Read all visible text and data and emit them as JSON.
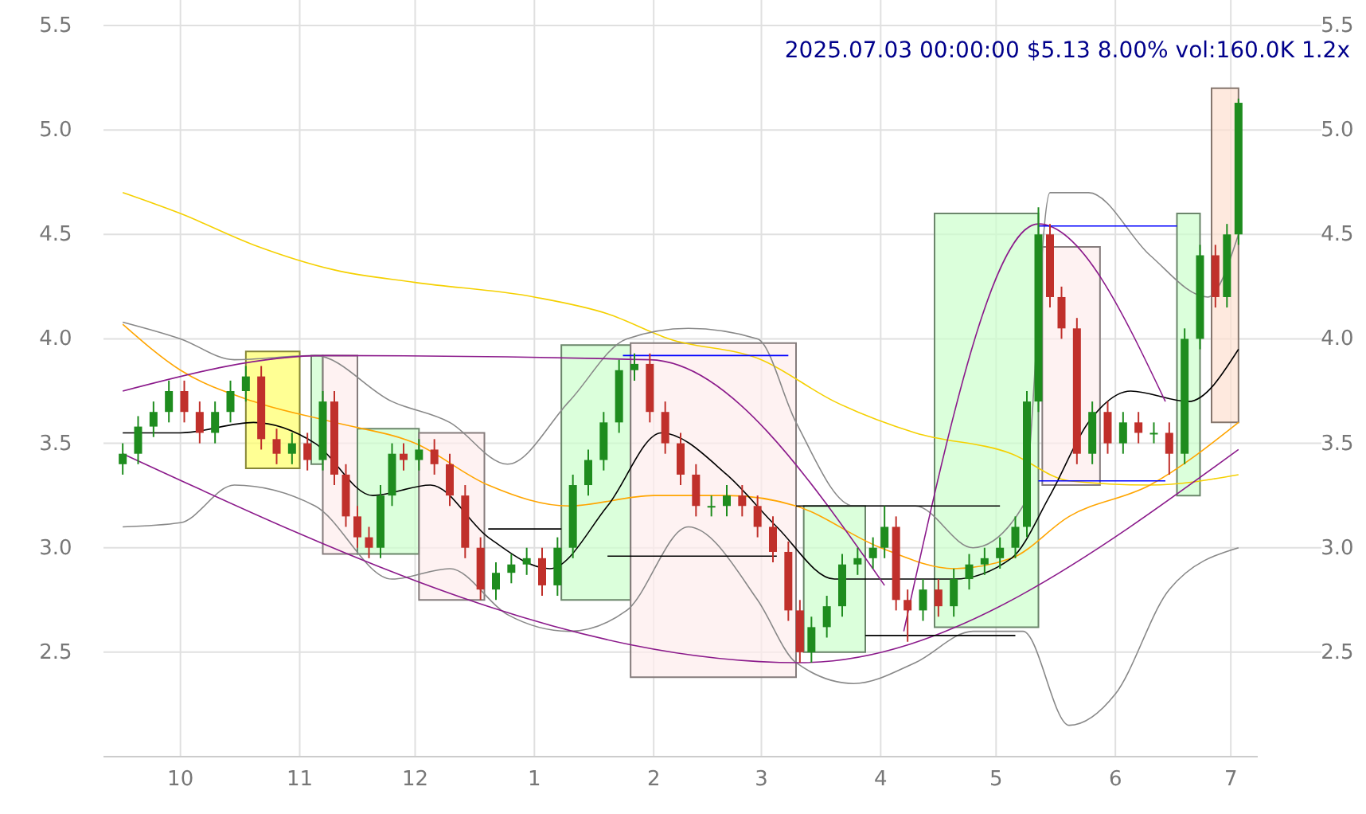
{
  "chart_data": {
    "type": "candlestick",
    "title": "2025.07.03 00:00:00 $5.13 8.00% vol:160.0K 1.2x",
    "xlim": [
      "2024-09-11",
      "2025-07-08"
    ],
    "xticks": [
      {
        "value": "2024-10-01",
        "label": "10"
      },
      {
        "value": "2024-11-01",
        "label": "11"
      },
      {
        "value": "2024-12-01",
        "label": "12"
      },
      {
        "value": "2025-01-01",
        "label": "1"
      },
      {
        "value": "2025-02-01",
        "label": "2"
      },
      {
        "value": "2025-03-01",
        "label": "3"
      },
      {
        "value": "2025-04-01",
        "label": "4"
      },
      {
        "value": "2025-05-01",
        "label": "5"
      },
      {
        "value": "2025-06-01",
        "label": "6"
      },
      {
        "value": "2025-07-01",
        "label": "7"
      }
    ],
    "ylim": [
      2.0,
      5.5
    ],
    "yticks": [
      2.5,
      {
        "value": 3,
        "label": "3.0"
      },
      3.5,
      {
        "value": 4,
        "label": "4.0"
      },
      4.5,
      {
        "value": 5,
        "label": "5.0"
      },
      5.5
    ],
    "y2lim": [
      2.0,
      5.5
    ],
    "y2ticks": [
      2.5,
      {
        "value": 3,
        "label": "3.0"
      },
      3.5,
      {
        "value": 4,
        "label": "4.0"
      },
      4.5,
      {
        "value": 5,
        "label": "5.0"
      },
      5.5
    ],
    "grid": true,
    "colors": [
      "#1e8c1e",
      "#1e8c1e",
      "#1e8c1e",
      "#1e8c1e",
      "#c0302b",
      "#c0302b",
      "#1e8c1e",
      "#1e8c1e",
      "#1e8c1e",
      "#c0302b",
      "#c0302b",
      "#1e8c1e",
      "#c0302b",
      "#1e8c1e",
      "#c0302b",
      "#c0302b",
      "#c0302b",
      "#c0302b",
      "#1e8c1e",
      "#1e8c1e",
      "#c0302b",
      "#1e8c1e",
      "#c0302b",
      "#c0302b",
      "#c0302b",
      "#c0302b",
      "#1e8c1e",
      "#1e8c1e",
      "#1e8c1e",
      "#c0302b",
      "#1e8c1e",
      "#1e8c1e",
      "#1e8c1e",
      "#1e8c1e",
      "#1e8c1e",
      "#1e8c1e",
      "#c0302b",
      "#c0302b",
      "#c0302b",
      "#c0302b",
      "#1e8c1e",
      "#1e8c1e",
      "#c0302b",
      "#c0302b",
      "#c0302b",
      "#c0302b",
      "#c0302b",
      "#1e8c1e",
      "#1e8c1e",
      "#1e8c1e",
      "#1e8c1e",
      "#1e8c1e",
      "#1e8c1e",
      "#c0302b",
      "#c0302b",
      "#1e8c1e",
      "#c0302b",
      "#1e8c1e",
      "#1e8c1e",
      "#1e8c1e",
      "#1e8c1e",
      "#1e8c1e",
      "#1e8c1e",
      "#1e8c1e",
      "#c0302b",
      "#c0302b",
      "#c0302b",
      "#1e8c1e",
      "#c0302b",
      "#1e8c1e",
      "#c0302b",
      "#1e8c1e",
      "#c0302b",
      "#1e8c1e",
      "#1e8c1e",
      "#c0302b",
      "#1e8c1e",
      "#1e8c1e"
    ],
    "x": [
      "2024-09-16",
      "2024-09-20",
      "2024-09-24",
      "2024-09-28",
      "2024-10-02",
      "2024-10-06",
      "2024-10-10",
      "2024-10-14",
      "2024-10-18",
      "2024-10-22",
      "2024-10-26",
      "2024-10-30",
      "2024-11-03",
      "2024-11-07",
      "2024-11-10",
      "2024-11-13",
      "2024-11-16",
      "2024-11-19",
      "2024-11-22",
      "2024-11-25",
      "2024-11-28",
      "2024-12-02",
      "2024-12-06",
      "2024-12-10",
      "2024-12-14",
      "2024-12-18",
      "2024-12-22",
      "2024-12-26",
      "2024-12-30",
      "2025-01-03",
      "2025-01-07",
      "2025-01-11",
      "2025-01-15",
      "2025-01-19",
      "2025-01-23",
      "2025-01-27",
      "2025-01-31",
      "2025-02-04",
      "2025-02-08",
      "2025-02-12",
      "2025-02-16",
      "2025-02-20",
      "2025-02-24",
      "2025-02-28",
      "2025-03-04",
      "2025-03-08",
      "2025-03-11",
      "2025-03-14",
      "2025-03-18",
      "2025-03-22",
      "2025-03-26",
      "2025-03-30",
      "2025-04-02",
      "2025-04-05",
      "2025-04-08",
      "2025-04-12",
      "2025-04-16",
      "2025-04-20",
      "2025-04-24",
      "2025-04-28",
      "2025-05-02",
      "2025-05-06",
      "2025-05-09",
      "2025-05-12",
      "2025-05-15",
      "2025-05-18",
      "2025-05-22",
      "2025-05-26",
      "2025-05-30",
      "2025-06-03",
      "2025-06-07",
      "2025-06-11",
      "2025-06-15",
      "2025-06-19",
      "2025-06-23",
      "2025-06-27",
      "2025-06-30",
      "2025-07-03"
    ],
    "ohlc": [
      [
        3.4,
        3.5,
        3.35,
        3.45
      ],
      [
        3.45,
        3.63,
        3.4,
        3.58
      ],
      [
        3.58,
        3.7,
        3.53,
        3.65
      ],
      [
        3.65,
        3.8,
        3.6,
        3.75
      ],
      [
        3.75,
        3.8,
        3.6,
        3.65
      ],
      [
        3.65,
        3.7,
        3.5,
        3.55
      ],
      [
        3.55,
        3.7,
        3.5,
        3.65
      ],
      [
        3.65,
        3.8,
        3.6,
        3.75
      ],
      [
        3.75,
        3.87,
        3.7,
        3.82
      ],
      [
        3.82,
        3.87,
        3.47,
        3.52
      ],
      [
        3.52,
        3.57,
        3.4,
        3.45
      ],
      [
        3.45,
        3.55,
        3.4,
        3.5
      ],
      [
        3.5,
        3.55,
        3.37,
        3.42
      ],
      [
        3.42,
        3.75,
        3.37,
        3.7
      ],
      [
        3.7,
        3.75,
        3.3,
        3.35
      ],
      [
        3.35,
        3.4,
        3.1,
        3.15
      ],
      [
        3.15,
        3.2,
        3.0,
        3.05
      ],
      [
        3.05,
        3.1,
        2.95,
        3.0
      ],
      [
        3.0,
        3.3,
        2.95,
        3.25
      ],
      [
        3.25,
        3.5,
        3.2,
        3.45
      ],
      [
        3.45,
        3.5,
        3.37,
        3.42
      ],
      [
        3.42,
        3.52,
        3.37,
        3.47
      ],
      [
        3.47,
        3.52,
        3.35,
        3.4
      ],
      [
        3.4,
        3.45,
        3.2,
        3.25
      ],
      [
        3.25,
        3.3,
        2.95,
        3.0
      ],
      [
        3.0,
        3.05,
        2.75,
        2.8
      ],
      [
        2.8,
        2.93,
        2.75,
        2.88
      ],
      [
        2.88,
        2.97,
        2.83,
        2.92
      ],
      [
        2.92,
        3.0,
        2.87,
        2.95
      ],
      [
        2.95,
        3.0,
        2.77,
        2.82
      ],
      [
        2.82,
        3.05,
        2.77,
        3.0
      ],
      [
        3.0,
        3.35,
        2.95,
        3.3
      ],
      [
        3.3,
        3.47,
        3.25,
        3.42
      ],
      [
        3.42,
        3.65,
        3.37,
        3.6
      ],
      [
        3.6,
        3.9,
        3.55,
        3.85
      ],
      [
        3.85,
        3.93,
        3.8,
        3.88
      ],
      [
        3.88,
        3.93,
        3.6,
        3.65
      ],
      [
        3.65,
        3.7,
        3.45,
        3.5
      ],
      [
        3.5,
        3.55,
        3.3,
        3.35
      ],
      [
        3.35,
        3.4,
        3.15,
        3.2
      ],
      [
        3.2,
        3.25,
        3.15,
        3.2
      ],
      [
        3.2,
        3.3,
        3.15,
        3.25
      ],
      [
        3.25,
        3.3,
        3.15,
        3.2
      ],
      [
        3.2,
        3.25,
        3.05,
        3.1
      ],
      [
        3.1,
        3.15,
        2.93,
        2.98
      ],
      [
        2.98,
        3.03,
        2.65,
        2.7
      ],
      [
        2.7,
        2.75,
        2.45,
        2.5
      ],
      [
        2.5,
        2.67,
        2.45,
        2.62
      ],
      [
        2.62,
        2.77,
        2.57,
        2.72
      ],
      [
        2.72,
        2.97,
        2.67,
        2.92
      ],
      [
        2.92,
        3.0,
        2.87,
        2.95
      ],
      [
        2.95,
        3.05,
        2.9,
        3.0
      ],
      [
        3.0,
        3.2,
        2.95,
        3.1
      ],
      [
        3.1,
        3.15,
        2.7,
        2.75
      ],
      [
        2.75,
        2.8,
        2.55,
        2.7
      ],
      [
        2.7,
        2.85,
        2.65,
        2.8
      ],
      [
        2.8,
        2.85,
        2.67,
        2.72
      ],
      [
        2.72,
        2.9,
        2.67,
        2.85
      ],
      [
        2.85,
        2.97,
        2.8,
        2.92
      ],
      [
        2.92,
        3.0,
        2.87,
        2.95
      ],
      [
        2.95,
        3.05,
        2.9,
        3.0
      ],
      [
        3.0,
        3.15,
        2.95,
        3.1
      ],
      [
        3.1,
        3.75,
        3.05,
        3.7
      ],
      [
        3.7,
        4.63,
        3.65,
        4.5
      ],
      [
        4.5,
        4.55,
        4.15,
        4.2
      ],
      [
        4.2,
        4.25,
        4.0,
        4.05
      ],
      [
        4.05,
        4.1,
        3.4,
        3.45
      ],
      [
        3.45,
        3.7,
        3.4,
        3.65
      ],
      [
        3.65,
        3.7,
        3.45,
        3.5
      ],
      [
        3.5,
        3.65,
        3.45,
        3.6
      ],
      [
        3.6,
        3.65,
        3.5,
        3.55
      ],
      [
        3.55,
        3.6,
        3.5,
        3.55
      ],
      [
        3.55,
        3.6,
        3.35,
        3.45
      ],
      [
        3.45,
        4.05,
        3.4,
        4.0
      ],
      [
        4.0,
        4.45,
        3.95,
        4.4
      ],
      [
        4.4,
        4.45,
        4.15,
        4.2
      ],
      [
        4.2,
        4.55,
        4.15,
        4.5
      ],
      [
        4.5,
        5.15,
        4.45,
        5.13
      ]
    ],
    "series": [
      {
        "type": "line",
        "color": "#ffff66",
        "x": [
          "2024-10-18",
          "2024-11-01"
        ],
        "values": [
          null,
          null
        ],
        "upper": [
          3.94,
          3.94
        ],
        "lower": [
          3.38,
          3.38
        ]
      },
      {
        "type": "line",
        "color": "#ccffcc",
        "x": [
          "2024-11-04",
          "2024-11-07"
        ],
        "values": [
          null,
          null
        ],
        "upper": [
          3.92,
          3.92
        ],
        "lower": [
          3.4,
          3.4
        ]
      },
      {
        "type": "line",
        "color": "#fdecec",
        "x": [
          "2024-11-07",
          "2024-11-16"
        ],
        "values": [
          null,
          null
        ],
        "upper": [
          3.92,
          3.92
        ],
        "lower": [
          2.97,
          2.97
        ]
      },
      {
        "type": "line",
        "color": "#ccffcc",
        "x": [
          "2024-11-16",
          "2024-12-02"
        ],
        "values": [
          null,
          null
        ],
        "upper": [
          3.57,
          3.57
        ],
        "lower": [
          2.97,
          2.97
        ]
      },
      {
        "type": "line",
        "color": "#fdecec",
        "x": [
          "2024-12-02",
          "2024-12-19"
        ],
        "values": [
          null,
          null
        ],
        "upper": [
          3.55,
          3.55
        ],
        "lower": [
          2.75,
          2.75
        ]
      },
      {
        "type": "line",
        "color": "#ccffcc",
        "x": [
          "2025-01-08",
          "2025-01-26"
        ],
        "values": [
          null,
          null
        ],
        "upper": [
          3.97,
          3.97
        ],
        "lower": [
          2.75,
          2.75
        ]
      },
      {
        "type": "line",
        "color": "#fdecec",
        "x": [
          "2025-01-26",
          "2025-03-10"
        ],
        "values": [
          null,
          null
        ],
        "upper": [
          3.98,
          3.98
        ],
        "lower": [
          2.38,
          2.38
        ]
      },
      {
        "type": "line",
        "color": "#ccffcc",
        "x": [
          "2025-03-12",
          "2025-03-28"
        ],
        "values": [
          null,
          null
        ],
        "upper": [
          3.2,
          3.2
        ],
        "lower": [
          2.5,
          2.5
        ]
      },
      {
        "type": "line",
        "color": "#ccffcc",
        "x": [
          "2025-04-15",
          "2025-05-12"
        ],
        "values": [
          null,
          null
        ],
        "upper": [
          4.6,
          4.6
        ],
        "lower": [
          2.62,
          2.62
        ]
      },
      {
        "type": "line",
        "color": "#fdecec",
        "x": [
          "2025-05-13",
          "2025-05-28"
        ],
        "values": [
          null,
          null
        ],
        "upper": [
          4.44,
          4.44
        ],
        "lower": [
          3.3,
          3.3
        ]
      },
      {
        "type": "line",
        "color": "#ccffcc",
        "x": [
          "2025-06-17",
          "2025-06-23"
        ],
        "values": [
          null,
          null
        ],
        "upper": [
          4.6,
          4.6
        ],
        "lower": [
          3.25,
          3.25
        ]
      },
      {
        "type": "line",
        "color": "#fde0d0",
        "x": [
          "2025-06-26",
          "2025-07-03"
        ],
        "values": [
          null,
          null
        ],
        "upper": [
          5.2,
          5.2
        ],
        "lower": [
          3.6,
          3.6
        ]
      },
      {
        "type": "line",
        "color": "#f5d000",
        "x": [
          "2024-09-16",
          "2024-10-01",
          "2024-10-20",
          "2024-11-10",
          "2024-12-01",
          "2025-01-01",
          "2025-01-20",
          "2025-02-05",
          "2025-03-01",
          "2025-03-20",
          "2025-04-10",
          "2025-05-05",
          "2025-05-20",
          "2025-06-10",
          "2025-07-03"
        ],
        "values": [
          4.7,
          4.6,
          4.45,
          4.33,
          4.27,
          4.2,
          4.12,
          4.0,
          3.9,
          3.7,
          3.55,
          3.45,
          3.32,
          3.3,
          3.35
        ]
      },
      {
        "type": "line",
        "color": "#ffa500",
        "x": [
          "2024-09-16",
          "2024-10-01",
          "2024-10-20",
          "2024-11-10",
          "2024-12-01",
          "2024-12-20",
          "2025-01-10",
          "2025-02-01",
          "2025-02-20",
          "2025-03-10",
          "2025-04-01",
          "2025-04-20",
          "2025-05-05",
          "2025-05-20",
          "2025-06-10",
          "2025-07-03"
        ],
        "values": [
          4.07,
          3.85,
          3.7,
          3.6,
          3.5,
          3.3,
          3.2,
          3.25,
          3.25,
          3.2,
          3.0,
          2.9,
          2.95,
          3.15,
          3.3,
          3.6
        ]
      },
      {
        "type": "line",
        "color": "#000000",
        "x": [
          "2024-09-16",
          "2024-10-01",
          "2024-10-20",
          "2024-11-05",
          "2024-11-20",
          "2024-12-05",
          "2024-12-20",
          "2025-01-05",
          "2025-01-20",
          "2025-02-03",
          "2025-02-20",
          "2025-03-05",
          "2025-03-20",
          "2025-04-05",
          "2025-04-20",
          "2025-05-05",
          "2025-05-15",
          "2025-05-25",
          "2025-06-05",
          "2025-06-20",
          "2025-07-03"
        ],
        "values": [
          3.55,
          3.55,
          3.6,
          3.5,
          3.25,
          3.3,
          3.05,
          2.9,
          3.2,
          3.55,
          3.35,
          3.1,
          2.85,
          2.85,
          2.85,
          2.95,
          3.25,
          3.6,
          3.75,
          3.7,
          3.95
        ]
      },
      {
        "type": "line",
        "color": "#888888",
        "x": [
          "2024-09-16",
          "2024-10-01",
          "2024-10-15",
          "2024-11-05",
          "2024-11-25",
          "2024-12-10",
          "2024-12-25",
          "2025-01-10",
          "2025-01-25",
          "2025-02-10",
          "2025-02-28",
          "2025-03-10",
          "2025-03-25",
          "2025-04-10",
          "2025-04-25",
          "2025-05-08",
          "2025-05-15",
          "2025-05-25",
          "2025-06-10",
          "2025-06-25",
          "2025-07-03"
        ],
        "values": [
          4.08,
          4.0,
          3.9,
          3.92,
          3.7,
          3.6,
          3.4,
          3.7,
          4.0,
          4.05,
          4.0,
          3.6,
          3.2,
          3.2,
          3.0,
          3.2,
          4.7,
          4.7,
          4.4,
          4.2,
          4.5
        ]
      },
      {
        "type": "line",
        "color": "#888888",
        "x": [
          "2024-09-16",
          "2024-10-01",
          "2024-10-15",
          "2024-11-05",
          "2024-11-25",
          "2024-12-10",
          "2024-12-25",
          "2025-01-10",
          "2025-01-25",
          "2025-02-10",
          "2025-02-28",
          "2025-03-10",
          "2025-03-25",
          "2025-04-10",
          "2025-04-25",
          "2025-05-08",
          "2025-05-20",
          "2025-06-01",
          "2025-06-15",
          "2025-07-03"
        ],
        "values": [
          3.1,
          3.12,
          3.3,
          3.2,
          2.85,
          2.9,
          2.68,
          2.6,
          2.7,
          3.1,
          2.75,
          2.45,
          2.35,
          2.45,
          2.6,
          2.6,
          2.15,
          2.3,
          2.8,
          3.0
        ]
      },
      {
        "type": "line",
        "color": "#8b1a8b",
        "x": [
          "2024-09-16",
          "2024-11-08",
          "2025-01-31",
          "2025-04-02"
        ],
        "values": [
          3.75,
          3.92,
          3.9,
          2.82
        ]
      },
      {
        "type": "line",
        "color": "#8b1a8b",
        "x": [
          "2024-09-16",
          "2025-03-11",
          "2025-07-03"
        ],
        "values": [
          3.45,
          2.45,
          3.47
        ]
      },
      {
        "type": "line",
        "color": "#8b1a8b",
        "x": [
          "2025-04-07",
          "2025-05-12",
          "2025-06-14"
        ],
        "values": [
          2.6,
          4.55,
          3.7
        ]
      },
      {
        "type": "line",
        "color": "#0000ff",
        "x": [
          "2025-01-24",
          "2025-03-08"
        ],
        "values": [
          3.92,
          3.92
        ]
      },
      {
        "type": "line",
        "color": "#0000ff",
        "x": [
          "2025-05-12",
          "2025-06-17"
        ],
        "values": [
          4.54,
          4.54
        ]
      },
      {
        "type": "line",
        "color": "#0000ff",
        "x": [
          "2025-05-12",
          "2025-06-14"
        ],
        "values": [
          3.32,
          3.32
        ]
      },
      {
        "type": "line",
        "color": "#000000",
        "x": [
          "2024-12-20",
          "2025-01-08"
        ],
        "values": [
          3.09,
          3.09
        ]
      },
      {
        "type": "line",
        "color": "#000000",
        "x": [
          "2025-01-20",
          "2025-03-05"
        ],
        "values": [
          2.96,
          2.96
        ]
      },
      {
        "type": "line",
        "color": "#000000",
        "x": [
          "2025-03-10",
          "2025-05-02"
        ],
        "values": [
          3.2,
          3.2
        ]
      },
      {
        "type": "line",
        "color": "#000000",
        "x": [
          "2025-03-28",
          "2025-05-06"
        ],
        "values": [
          2.58,
          2.58
        ]
      }
    ]
  }
}
